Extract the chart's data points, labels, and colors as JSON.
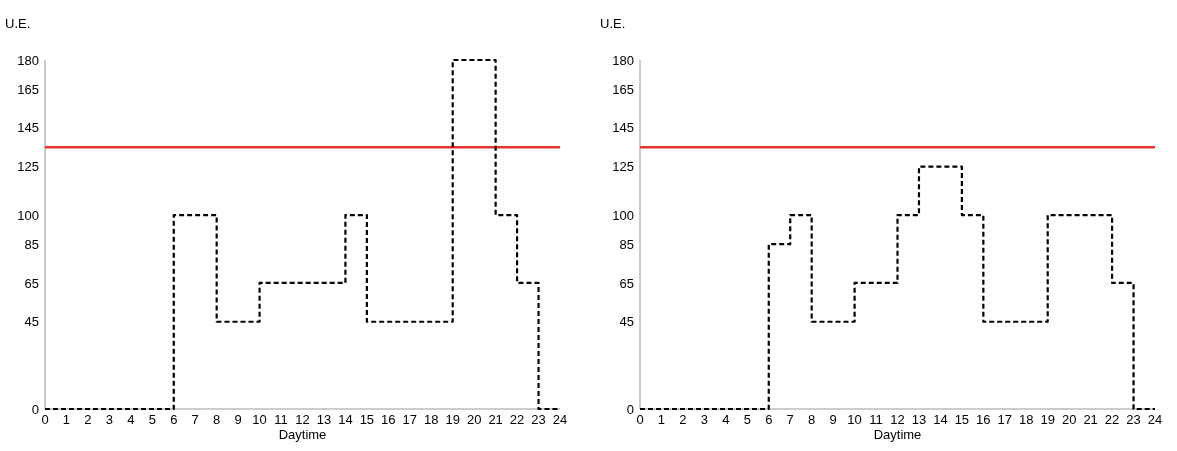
{
  "chart_data": [
    {
      "type": "step",
      "xlabel": "Daytime",
      "ylabel": "U.E.",
      "x": [
        0,
        1,
        2,
        3,
        4,
        5,
        6,
        7,
        8,
        9,
        10,
        11,
        12,
        13,
        14,
        15,
        16,
        17,
        18,
        19,
        20,
        21,
        22,
        23,
        24
      ],
      "series": [
        {
          "color": "#000000",
          "values": [
            0,
            0,
            0,
            0,
            0,
            0,
            100,
            100,
            45,
            45,
            65,
            65,
            65,
            65,
            100,
            45,
            45,
            45,
            45,
            180,
            180,
            100,
            65,
            0,
            0
          ]
        }
      ],
      "line_style": "dashed",
      "xlim": [
        0,
        24
      ],
      "ylim": [
        0,
        180
      ],
      "xticks": [
        0,
        1,
        2,
        3,
        4,
        5,
        6,
        7,
        8,
        9,
        10,
        11,
        12,
        13,
        14,
        15,
        16,
        17,
        18,
        19,
        20,
        21,
        22,
        23,
        24
      ],
      "yticks": [
        0,
        45,
        65,
        85,
        100,
        125,
        145,
        165,
        180
      ],
      "ref_lines": [
        {
          "axis": "y",
          "value": 135,
          "color": "#e8322c"
        }
      ]
    },
    {
      "type": "step",
      "xlabel": "Daytime",
      "ylabel": "U.E.",
      "x": [
        0,
        1,
        2,
        3,
        4,
        5,
        6,
        7,
        8,
        9,
        10,
        11,
        12,
        13,
        14,
        15,
        16,
        17,
        18,
        19,
        20,
        21,
        22,
        23,
        24
      ],
      "series": [
        {
          "color": "#000000",
          "values": [
            0,
            0,
            0,
            0,
            0,
            0,
            85,
            100,
            45,
            45,
            65,
            65,
            100,
            125,
            125,
            100,
            45,
            45,
            45,
            100,
            100,
            100,
            65,
            0,
            0
          ]
        }
      ],
      "line_style": "dashed",
      "xlim": [
        0,
        24
      ],
      "ylim": [
        0,
        180
      ],
      "xticks": [
        0,
        1,
        2,
        3,
        4,
        5,
        6,
        7,
        8,
        9,
        10,
        11,
        12,
        13,
        14,
        15,
        16,
        17,
        18,
        19,
        20,
        21,
        22,
        23,
        24
      ],
      "yticks": [
        0,
        45,
        65,
        85,
        100,
        125,
        145,
        165,
        180
      ],
      "ref_lines": [
        {
          "axis": "y",
          "value": 135,
          "color": "#e8322c"
        }
      ]
    }
  ]
}
